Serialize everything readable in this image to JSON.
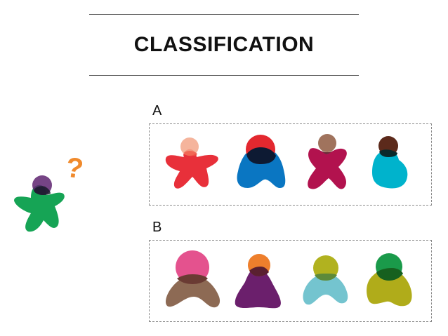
{
  "title": "CLASSIFICATION",
  "groups": {
    "a": {
      "label": "A"
    },
    "b": {
      "label": "B"
    }
  },
  "unknown": {
    "mark": "?"
  },
  "colors": {
    "a1_head": "#f3a78b",
    "a1_body": "#e8303a",
    "a2_head": "#e3282f",
    "a2_body": "#0a76c2",
    "a3_head": "#a0735d",
    "a3_body": "#b2124e",
    "a4_head": "#5c2a1b",
    "a4_body": "#00b3cc",
    "b1_head": "#e4528e",
    "b1_body": "#8d6a54",
    "b2_head": "#ee7f2c",
    "b2_body": "#6b1f6c",
    "b3_head": "#b1b21f",
    "b3_body": "#74c4cf",
    "b4_head": "#1a9a4a",
    "b4_body": "#b0ac1a",
    "unknown_head": "#5e2370",
    "unknown_body": "#0ea14f",
    "question_mark": "#f08a2c"
  }
}
